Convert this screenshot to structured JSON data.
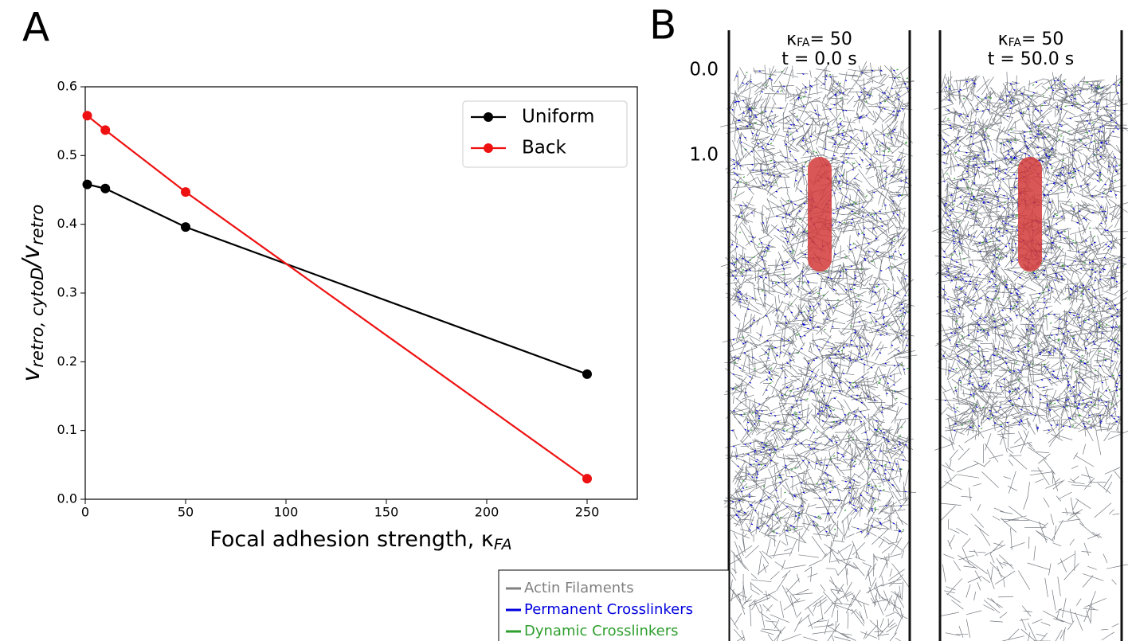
{
  "figure": {
    "panel_a_label": "A",
    "panel_b_label": "B"
  },
  "chart_data": {
    "type": "line",
    "x": [
      1,
      10,
      50,
      250
    ],
    "series": [
      {
        "name": "Uniform",
        "color": "#000000",
        "values": [
          0.458,
          0.452,
          0.396,
          0.182
        ]
      },
      {
        "name": "Back",
        "color": "#ee1111",
        "values": [
          0.558,
          0.537,
          0.447,
          0.03
        ]
      }
    ],
    "xlim": [
      0,
      275
    ],
    "ylim": [
      0,
      0.6
    ],
    "xticks": [
      0,
      50,
      100,
      150,
      200,
      250
    ],
    "yticks": [
      {
        "value": 0,
        "label": "0.0"
      },
      0.1,
      0.2,
      0.3,
      0.4,
      0.5,
      0.6
    ],
    "xlabel": {
      "text": "Focal adhesion strength, κ",
      "sub": "FA"
    },
    "ylabel": {
      "v1": "v",
      "sub1": "retro, cytoD",
      "v2": "/v",
      "sub2": "retro"
    },
    "legend": "upper right"
  },
  "simulation": {
    "panels": [
      {
        "kappa": "κ",
        "kappa_sub": "FA",
        "kappa_value": "= 50",
        "time": "t = 0.0 s"
      },
      {
        "kappa": "κ",
        "kappa_sub": "FA",
        "kappa_value": "= 50",
        "time": "t = 50.0 s"
      }
    ],
    "yticks": [
      "0.0",
      "1.0"
    ],
    "legend": [
      {
        "name": "Actin Filaments",
        "color": "#808080"
      },
      {
        "name": "Permanent Crosslinkers",
        "color": "#0000dd"
      },
      {
        "name": "Dynamic Crosslinkers",
        "color": "#2e9e2e"
      }
    ]
  }
}
